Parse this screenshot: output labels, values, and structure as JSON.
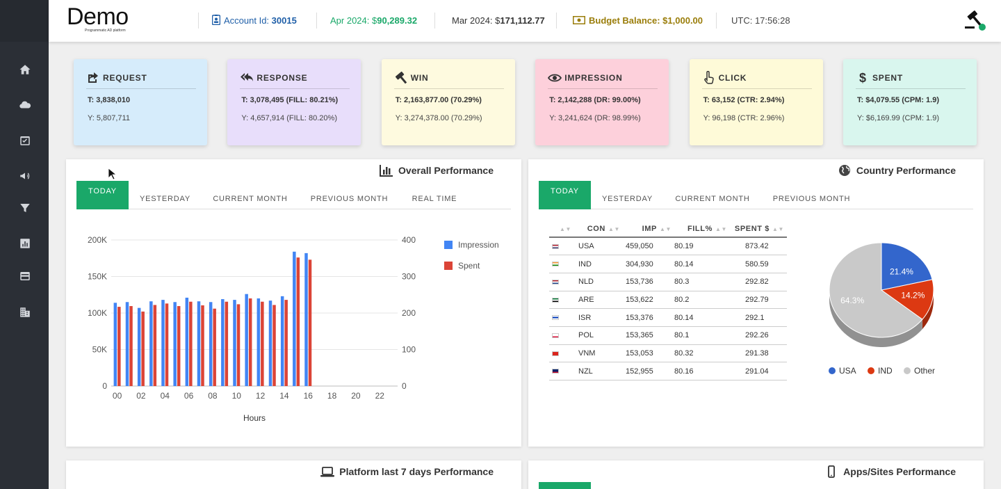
{
  "header": {
    "brand": "Demo",
    "brand_sub": "Programmatic AD platform",
    "account_label": "Account Id:",
    "account_id": "30015",
    "apr_label": "Apr 2024: $",
    "apr_value": "90,289.32",
    "mar_label": "Mar 2024: $",
    "mar_value": "171,112.77",
    "budget_label": "Budget Balance: $1,000.00",
    "utc_label": "UTC: 17:56:28"
  },
  "sidebar": {
    "items": [
      "home-icon",
      "cloud-icon",
      "calendar-check-icon",
      "megaphone-icon",
      "filter-icon",
      "bar-chart-icon",
      "credit-card-icon",
      "building-icon"
    ]
  },
  "kpis": [
    {
      "title": "REQUEST",
      "t": "T: 3,838,010",
      "y": "Y: 5,807,711",
      "color": "#d6ecfb",
      "icon": "share-icon"
    },
    {
      "title": "RESPONSE",
      "t": "T: 3,078,495 (FILL: 80.21%)",
      "y": "Y: 4,657,914 (FILL: 80.20%)",
      "color": "#e8defb",
      "icon": "reply-all-icon"
    },
    {
      "title": "WIN",
      "t": "T: 2,163,877.00 (70.29%)",
      "y": "Y: 3,274,378.00 (70.29%)",
      "color": "#fefadf",
      "icon": "gavel-icon"
    },
    {
      "title": "IMPRESSION",
      "t": "T: 2,142,288 (DR: 99.00%)",
      "y": "Y: 3,241,624 (DR: 98.99%)",
      "color": "#fdd0db",
      "icon": "eye-icon"
    },
    {
      "title": "CLICK",
      "t": "T: 63,152 (CTR: 2.94%)",
      "y": "Y: 96,198 (CTR: 2.96%)",
      "color": "#fefad8",
      "icon": "pointer-icon"
    },
    {
      "title": "SPENT",
      "t": "T: $4,079.55 (CPM: 1.9)",
      "y": "Y: $6,169.99 (CPM: 1.9)",
      "color": "#d9f6ee",
      "icon": "dollar-icon"
    }
  ],
  "overall": {
    "title": "Overall Performance",
    "tabs": [
      "TODAY",
      "YESTERDAY",
      "CURRENT MONTH",
      "PREVIOUS MONTH",
      "REAL TIME"
    ]
  },
  "country": {
    "title": "Country Performance",
    "tabs": [
      "TODAY",
      "YESTERDAY",
      "CURRENT MONTH",
      "PREVIOUS MONTH"
    ],
    "columns": [
      "CON",
      "IMP",
      "FILL%",
      "SPENT $"
    ],
    "rows": [
      {
        "con": "USA",
        "imp": "459,050",
        "fill": "80.19",
        "spent": "873.42"
      },
      {
        "con": "IND",
        "imp": "304,930",
        "fill": "80.14",
        "spent": "580.59"
      },
      {
        "con": "NLD",
        "imp": "153,736",
        "fill": "80.3",
        "spent": "292.82"
      },
      {
        "con": "ARE",
        "imp": "153,622",
        "fill": "80.2",
        "spent": "292.79"
      },
      {
        "con": "ISR",
        "imp": "153,376",
        "fill": "80.14",
        "spent": "292.1"
      },
      {
        "con": "POL",
        "imp": "153,365",
        "fill": "80.1",
        "spent": "292.26"
      },
      {
        "con": "VNM",
        "imp": "153,053",
        "fill": "80.32",
        "spent": "291.38"
      },
      {
        "con": "NZL",
        "imp": "152,955",
        "fill": "80.16",
        "spent": "291.04"
      }
    ]
  },
  "platform": {
    "title": "Platform last 7 days Performance"
  },
  "apps": {
    "title": "Apps/Sites Performance"
  },
  "chart_data": [
    {
      "type": "bar",
      "x": [
        "00",
        "01",
        "02",
        "03",
        "04",
        "05",
        "06",
        "07",
        "08",
        "09",
        "10",
        "11",
        "12",
        "13",
        "14",
        "15",
        "16"
      ],
      "x_ticks": [
        "00",
        "02",
        "04",
        "06",
        "08",
        "10",
        "12",
        "14",
        "16",
        "18",
        "20",
        "22"
      ],
      "x_range": [
        0,
        23
      ],
      "xlabel": "Hours",
      "ylim": [
        0,
        200000
      ],
      "y_ticks": [
        "0",
        "50K",
        "100K",
        "150K",
        "200K"
      ],
      "y2lim": [
        0,
        400
      ],
      "y2_ticks": [
        "0",
        "100",
        "200",
        "300",
        "400"
      ],
      "legend_position": "right",
      "series": [
        {
          "name": "Impression",
          "axis": "left",
          "color": "#4285f4",
          "values": [
            114000,
            115000,
            107000,
            116000,
            118000,
            115000,
            121000,
            116000,
            115000,
            119000,
            118000,
            126000,
            120000,
            117000,
            123000,
            184000,
            182000
          ]
        },
        {
          "name": "Spent",
          "axis": "right",
          "color": "#db4437",
          "values": [
            217,
            219,
            204,
            222,
            226,
            219,
            231,
            221,
            212,
            231,
            224,
            240,
            231,
            222,
            236,
            352,
            346
          ]
        }
      ]
    },
    {
      "type": "pie",
      "categories": [
        "USA",
        "IND",
        "Other"
      ],
      "values": [
        21.4,
        14.2,
        64.3
      ],
      "labels": [
        "21.4%",
        "14.2%",
        "64.3%"
      ],
      "colors": [
        "#3366cc",
        "#dc3912",
        "#c9c9c9"
      ],
      "legend_position": "bottom"
    }
  ]
}
